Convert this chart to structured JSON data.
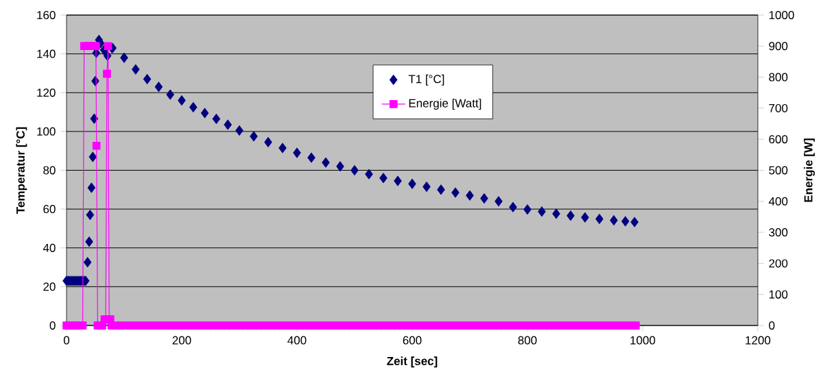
{
  "chart_data": {
    "type": "scatter",
    "xlabel": "Zeit [sec]",
    "ylabel": "Temperatur [°C]",
    "y2label": "Energie [W]",
    "xlim": [
      0,
      1200
    ],
    "xticks": [
      0,
      200,
      400,
      600,
      800,
      1000,
      1200
    ],
    "ylim": [
      0,
      160
    ],
    "yticks": [
      0,
      20,
      40,
      60,
      80,
      100,
      120,
      140,
      160
    ],
    "y2lim": [
      0,
      1000
    ],
    "y2ticks": [
      0,
      100,
      200,
      300,
      400,
      500,
      600,
      700,
      800,
      900,
      1000
    ],
    "grid": "y",
    "legend": "top",
    "series": [
      {
        "name": "T1 [°C]",
        "marker": "diamond",
        "color": "#000080",
        "x": [
          0,
          3,
          6,
          9,
          12,
          15,
          18,
          21,
          24,
          27,
          30,
          33,
          36.5,
          39.3,
          40.9,
          43.3,
          45.6,
          48,
          50,
          51.6,
          56.3,
          59,
          65,
          71,
          78.6,
          80,
          100,
          120,
          140,
          160,
          180,
          200,
          220,
          240,
          260,
          280,
          300,
          325,
          350,
          375,
          400,
          425,
          450,
          475,
          500,
          525,
          550,
          575,
          600,
          625,
          650,
          675,
          700,
          725,
          750,
          775,
          800,
          825,
          850,
          875,
          900,
          925,
          950,
          970,
          986
        ],
        "values": [
          23,
          23,
          23,
          23,
          23,
          23,
          23,
          23,
          23,
          23,
          23,
          23,
          32.6,
          43.2,
          57,
          71,
          86.9,
          106.6,
          126,
          140.5,
          147.2,
          145.5,
          142,
          139,
          143,
          143,
          138,
          132,
          127,
          123,
          119,
          116,
          112.5,
          109.5,
          106.5,
          103.5,
          100.5,
          97.5,
          94.5,
          91.5,
          89,
          86.5,
          84,
          82,
          80,
          78,
          76,
          74.5,
          73,
          71.5,
          70,
          68.5,
          67,
          65.5,
          64,
          61,
          59.8,
          58.7,
          57.6,
          56.6,
          55.7,
          54.9,
          54.2,
          53.7,
          53.3
        ]
      },
      {
        "name": "Energie [Watt]",
        "type": "line",
        "axis": "y2",
        "marker": "square",
        "line_style": "solid",
        "color": "#ff00ff",
        "x": [
          0,
          4,
          8,
          12,
          16,
          20,
          24,
          28,
          30.6,
          34,
          37,
          40,
          43,
          46,
          49,
          51,
          52,
          54,
          58,
          62,
          66,
          68,
          70.2,
          72.2,
          74,
          76,
          78,
          86,
          94,
          102,
          110,
          118,
          126,
          134,
          142,
          150,
          158,
          166,
          174,
          182,
          190,
          198,
          206,
          214,
          222,
          230,
          238,
          246,
          254,
          262,
          270,
          278,
          286,
          294,
          302,
          310,
          318,
          326,
          334,
          342,
          350,
          358,
          366,
          374,
          382,
          390,
          398,
          406,
          414,
          422,
          430,
          438,
          446,
          454,
          462,
          470,
          478,
          486,
          494,
          502,
          510,
          518,
          526,
          534,
          542,
          550,
          558,
          566,
          574,
          582,
          590,
          598,
          606,
          614,
          622,
          630,
          638,
          646,
          654,
          662,
          670,
          678,
          686,
          694,
          702,
          710,
          718,
          726,
          734,
          742,
          750,
          758,
          766,
          774,
          782,
          790,
          798,
          806,
          814,
          822,
          830,
          838,
          846,
          854,
          862,
          870,
          878,
          886,
          894,
          902,
          910,
          918,
          926,
          934,
          942,
          950,
          958,
          966,
          974,
          982,
          988
        ],
        "values": [
          0,
          0,
          0,
          0,
          0,
          0,
          0,
          0,
          900,
          900,
          900,
          900,
          900,
          900,
          900,
          900,
          579,
          0,
          0,
          0,
          20,
          20,
          811,
          900,
          20,
          20,
          0,
          0,
          0,
          0,
          0,
          0,
          0,
          0,
          0,
          0,
          0,
          0,
          0,
          0,
          0,
          0,
          0,
          0,
          0,
          0,
          0,
          0,
          0,
          0,
          0,
          0,
          0,
          0,
          0,
          0,
          0,
          0,
          0,
          0,
          0,
          0,
          0,
          0,
          0,
          0,
          0,
          0,
          0,
          0,
          0,
          0,
          0,
          0,
          0,
          0,
          0,
          0,
          0,
          0,
          0,
          0,
          0,
          0,
          0,
          0,
          0,
          0,
          0,
          0,
          0,
          0,
          0,
          0,
          0,
          0,
          0,
          0,
          0,
          0,
          0,
          0,
          0,
          0,
          0,
          0,
          0,
          0,
          0,
          0,
          0,
          0,
          0,
          0,
          0,
          0,
          0,
          0,
          0,
          0,
          0,
          0,
          0,
          0,
          0,
          0,
          0,
          0,
          0,
          0,
          0,
          0,
          0,
          0,
          0,
          0,
          0,
          0,
          0,
          0,
          0
        ]
      }
    ]
  }
}
